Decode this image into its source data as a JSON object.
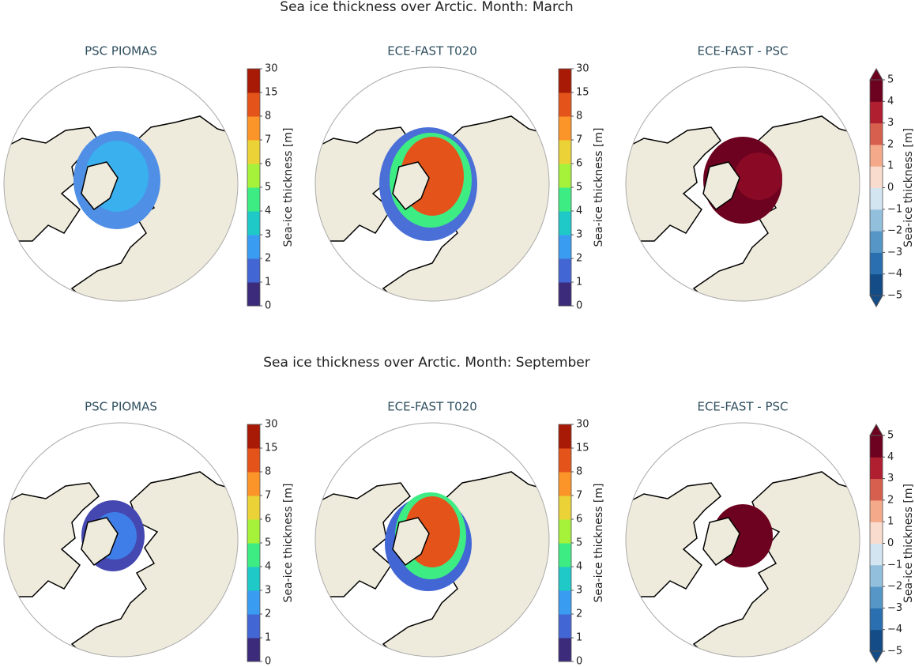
{
  "figures": [
    {
      "title": "Sea ice thickness over Arctic. Month: March",
      "panels": [
        {
          "title": "PSC PIOMAS",
          "colorbar": {
            "label": "Sea-ice thickness [m]",
            "ticks": [
              0,
              1,
              2,
              3,
              4,
              5,
              6,
              7,
              8,
              15,
              30
            ],
            "colors": [
              "#3c2a7a",
              "#4266d4",
              "#3a9cf0",
              "#1fc9c8",
              "#3ded84",
              "#a6f23b",
              "#ebd337",
              "#fb9529",
              "#e4541a",
              "#a81a06"
            ]
          }
        },
        {
          "title": "ECE-FAST T020",
          "colorbar": {
            "label": "Sea-ice thickness [m]",
            "ticks": [
              0,
              1,
              2,
              3,
              4,
              5,
              6,
              7,
              8,
              15,
              30
            ],
            "colors": [
              "#3c2a7a",
              "#4266d4",
              "#3a9cf0",
              "#1fc9c8",
              "#3ded84",
              "#a6f23b",
              "#ebd337",
              "#fb9529",
              "#e4541a",
              "#a81a06"
            ]
          }
        },
        {
          "title": "ECE-FAST -  PSC",
          "colorbar": {
            "label": "Sea-ice thickness [m]",
            "extend": "both",
            "ticks": [
              {
                "value": -5,
                "label": "−5"
              },
              {
                "value": -4,
                "label": "−4"
              },
              {
                "value": -3,
                "label": "−3"
              },
              {
                "value": -2,
                "label": "−2"
              },
              {
                "value": -1,
                "label": "−1"
              },
              0,
              1,
              2,
              3,
              4,
              5
            ],
            "colors": [
              "#134c86",
              "#2a6fb0",
              "#5596c6",
              "#92bfdc",
              "#d2e5f0",
              "#f9dccd",
              "#f3a98a",
              "#d6604d",
              "#b01f2f",
              "#6d0220"
            ]
          }
        }
      ]
    },
    {
      "title": "Sea ice thickness over Arctic. Month: September",
      "panels": [
        {
          "title": "PSC PIOMAS",
          "colorbar": {
            "label": "Sea-ice thickness [m]",
            "ticks": [
              0,
              1,
              2,
              3,
              4,
              5,
              6,
              7,
              8,
              15,
              30
            ],
            "colors": [
              "#3c2a7a",
              "#4266d4",
              "#3a9cf0",
              "#1fc9c8",
              "#3ded84",
              "#a6f23b",
              "#ebd337",
              "#fb9529",
              "#e4541a",
              "#a81a06"
            ]
          }
        },
        {
          "title": "ECE-FAST T020",
          "colorbar": {
            "label": "Sea-ice thickness [m]",
            "ticks": [
              0,
              1,
              2,
              3,
              4,
              5,
              6,
              7,
              8,
              15,
              30
            ],
            "colors": [
              "#3c2a7a",
              "#4266d4",
              "#3a9cf0",
              "#1fc9c8",
              "#3ded84",
              "#a6f23b",
              "#ebd337",
              "#fb9529",
              "#e4541a",
              "#a81a06"
            ]
          }
        },
        {
          "title": "ECE-FAST -  PSC",
          "colorbar": {
            "label": "Sea-ice thickness [m]",
            "extend": "both",
            "ticks": [
              {
                "value": -5,
                "label": "−5"
              },
              {
                "value": -4,
                "label": "−4"
              },
              {
                "value": -3,
                "label": "−3"
              },
              {
                "value": -2,
                "label": "−2"
              },
              {
                "value": -1,
                "label": "−1"
              },
              0,
              1,
              2,
              3,
              4,
              5
            ],
            "colors": [
              "#134c86",
              "#2a6fb0",
              "#5596c6",
              "#92bfdc",
              "#d2e5f0",
              "#f9dccd",
              "#f3a98a",
              "#d6604d",
              "#b01f2f",
              "#6d0220"
            ]
          }
        }
      ]
    }
  ]
}
